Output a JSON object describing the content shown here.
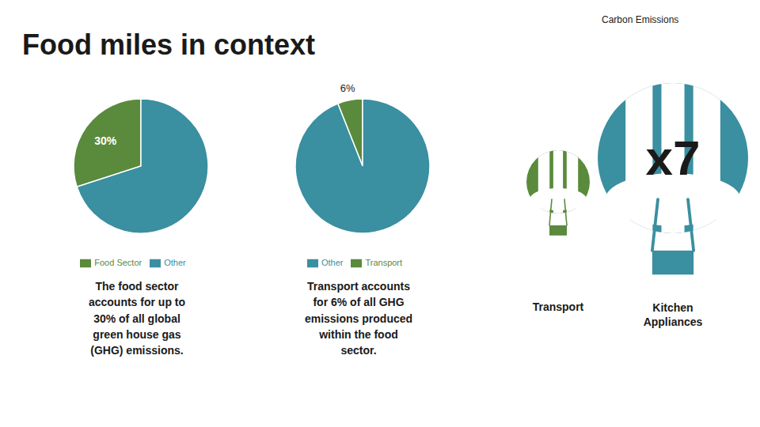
{
  "title": "Food miles in context",
  "annotations": [
    "Carbon Emissions",
    "x7",
    "Transport",
    "Kitchen\nAppliances"
  ],
  "chart_data": [
    {
      "type": "pie",
      "categories": [
        "Food Sector",
        "Other"
      ],
      "values": [
        30,
        70
      ],
      "value_labels": [
        "30%",
        null
      ],
      "colors": [
        "#5a8a3c",
        "#3a8fa0"
      ],
      "data_labels": true,
      "legend": "bottom",
      "annotations": [
        "The food sector\naccounts for up to\n30% of all global\ngreen house gas\n(GHG) emissions."
      ]
    },
    {
      "type": "pie",
      "categories": [
        "Transport",
        "Other"
      ],
      "values": [
        6,
        94
      ],
      "value_labels": [
        "6%",
        null
      ],
      "colors": [
        "#5a8a3c",
        "#3a8fa0"
      ],
      "data_labels": true,
      "legend": "bottom",
      "annotations": [
        "Transport accounts\nfor 6% of all GHG\nemissions produced\nwithin the food\nsector."
      ]
    }
  ]
}
